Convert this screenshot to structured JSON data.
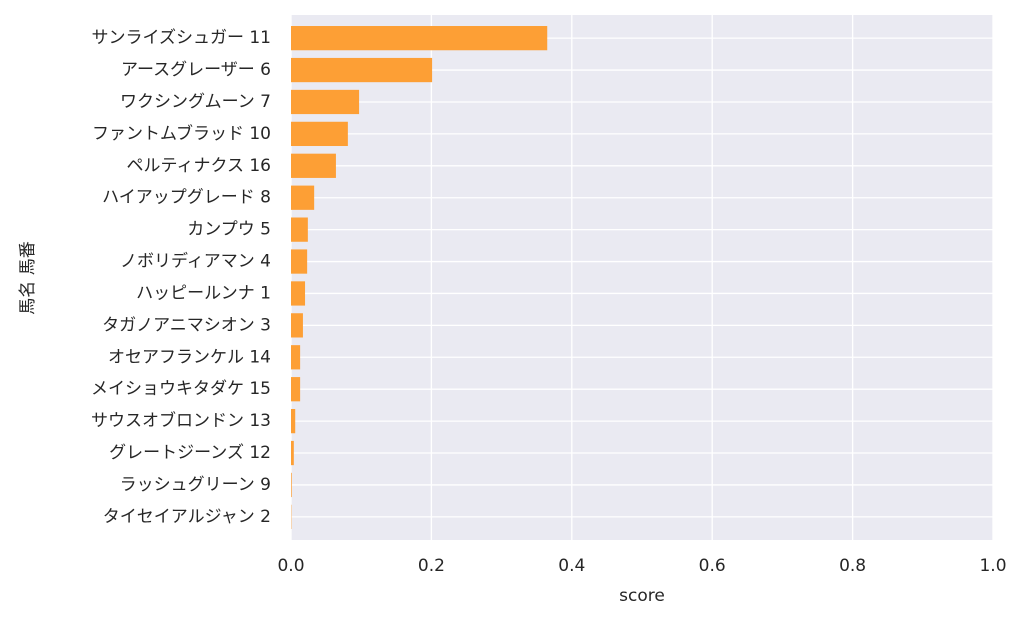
{
  "chart_data": {
    "type": "barh",
    "x_label": "score",
    "y_label": "馬名 馬番",
    "categories": [
      "サンライズシュガー 11",
      "アースグレーザー 6",
      "ワクシングムーン 7",
      "ファントムブラッド 10",
      "ペルティナクス 16",
      "ハイアップグレード 8",
      "カンプウ 5",
      "ノボリディアマン 4",
      "ハッピールンナ 1",
      "タガノアニマシオン 3",
      "オセアフランケル 14",
      "メイショウキタダケ 15",
      "サウスオブロンドン 13",
      "グレートジーンズ 12",
      "ラッシュグリーン 9",
      "タイセイアルジャン 2"
    ],
    "values": [
      0.365,
      0.201,
      0.097,
      0.081,
      0.064,
      0.033,
      0.024,
      0.023,
      0.02,
      0.017,
      0.013,
      0.013,
      0.006,
      0.004,
      0.001,
      0.0005
    ],
    "color": "#fd9f35",
    "xlim": [
      0,
      1
    ],
    "xticks": [
      {
        "value": 0,
        "label": "0.0"
      },
      0.2,
      0.4,
      0.6,
      0.8,
      {
        "value": 1,
        "label": "1.0"
      }
    ],
    "grid": true
  }
}
